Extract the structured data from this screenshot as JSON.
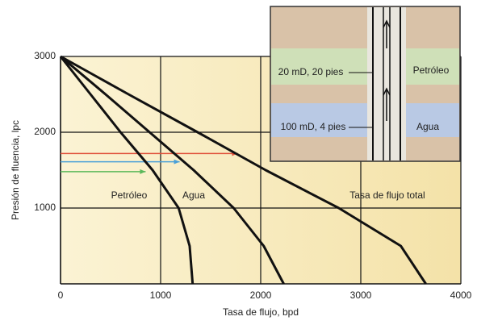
{
  "chart_data": {
    "type": "line",
    "x_label": "Tasa de flujo, bpd",
    "y_label": "Presión de fluencia, lpc",
    "xlim": [
      0,
      4000
    ],
    "ylim": [
      0,
      3000
    ],
    "xticks": [
      0,
      1000,
      2000,
      3000,
      4000
    ],
    "yticks": [
      1000,
      2000,
      3000
    ],
    "grid": true,
    "series": [
      {
        "name": "Petróleo",
        "color": "#111111",
        "x": [
          0,
          300,
          600,
          920,
          1180,
          1290,
          1320
        ],
        "values": [
          3000,
          2500,
          2000,
          1500,
          1000,
          500,
          0
        ]
      },
      {
        "name": "Agua",
        "color": "#111111",
        "x": [
          0,
          450,
          890,
          1330,
          1730,
          2030,
          2230
        ],
        "values": [
          3000,
          2500,
          2000,
          1500,
          1000,
          500,
          0
        ]
      },
      {
        "name": "Tasa de flujo total",
        "color": "#111111",
        "x": [
          0,
          680,
          1370,
          2050,
          2780,
          3400,
          3650
        ],
        "values": [
          3000,
          2500,
          2000,
          1500,
          1000,
          500,
          0
        ]
      }
    ],
    "arrows": [
      {
        "color": "#e0503a",
        "y": 1720,
        "x_end": 1770
      },
      {
        "color": "#4aa0d8",
        "y": 1610,
        "x_end": 1190
      },
      {
        "color": "#5bb85a",
        "y": 1480,
        "x_end": 850
      }
    ],
    "inset": {
      "upper_zone": "20 mD, 20 pies",
      "upper_fluid": "Petróleo",
      "lower_zone": "100 mD, 4 pies",
      "lower_fluid": "Agua"
    }
  }
}
